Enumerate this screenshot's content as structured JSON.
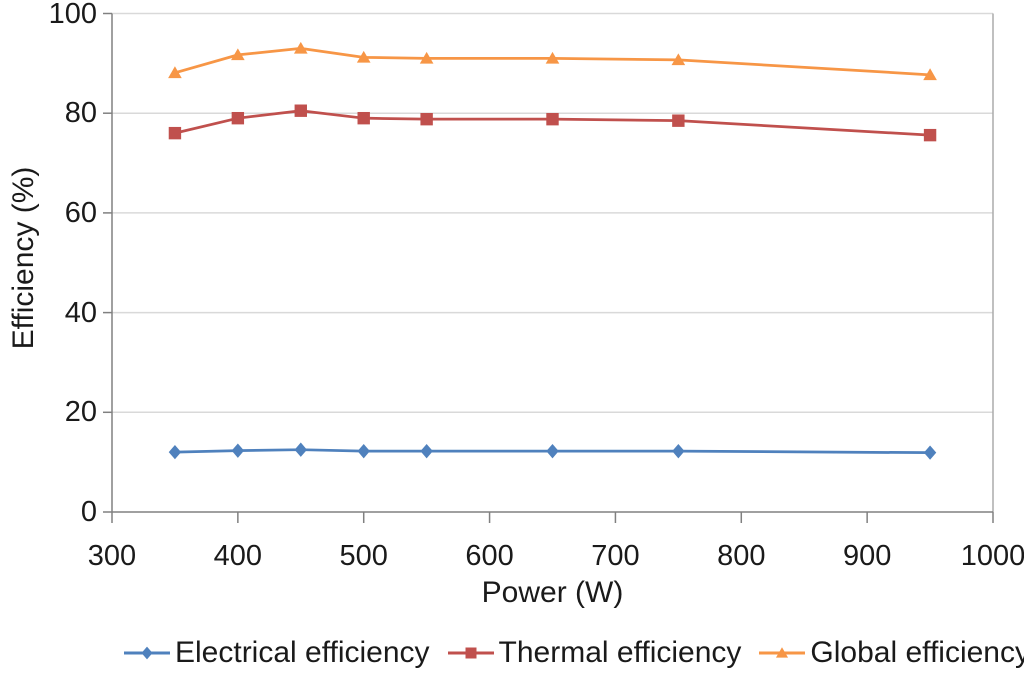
{
  "chart_data": {
    "type": "line",
    "title": "",
    "xlabel": "Power (W)",
    "ylabel": "Efficiency (%)",
    "xlim": [
      300,
      1000
    ],
    "ylim": [
      0,
      100
    ],
    "xticks": [
      300,
      400,
      500,
      600,
      700,
      800,
      900,
      1000
    ],
    "yticks": [
      0,
      20,
      40,
      60,
      80,
      100
    ],
    "grid": "horizontal",
    "legend_position": "bottom",
    "x": [
      350,
      400,
      450,
      500,
      550,
      650,
      750,
      950
    ],
    "series": [
      {
        "name": "Electrical efficiency",
        "marker": "diamond",
        "color": "#4F81BD",
        "values": [
          12.0,
          12.3,
          12.5,
          12.2,
          12.2,
          12.2,
          12.2,
          11.9
        ]
      },
      {
        "name": "Thermal efficiency",
        "marker": "square",
        "color": "#C0504D",
        "values": [
          76.0,
          79.0,
          80.5,
          79.0,
          78.8,
          78.8,
          78.5,
          75.6
        ]
      },
      {
        "name": "Global efficiency",
        "marker": "triangle",
        "color": "#F79646",
        "values": [
          88.1,
          91.7,
          93.0,
          91.2,
          91.0,
          91.0,
          90.7,
          87.7
        ]
      }
    ],
    "colors": {
      "gridline": "#D9D9D9",
      "axis_line": "#808080",
      "plot_border": "#ABABAB",
      "text": "#1a1a1a"
    }
  }
}
